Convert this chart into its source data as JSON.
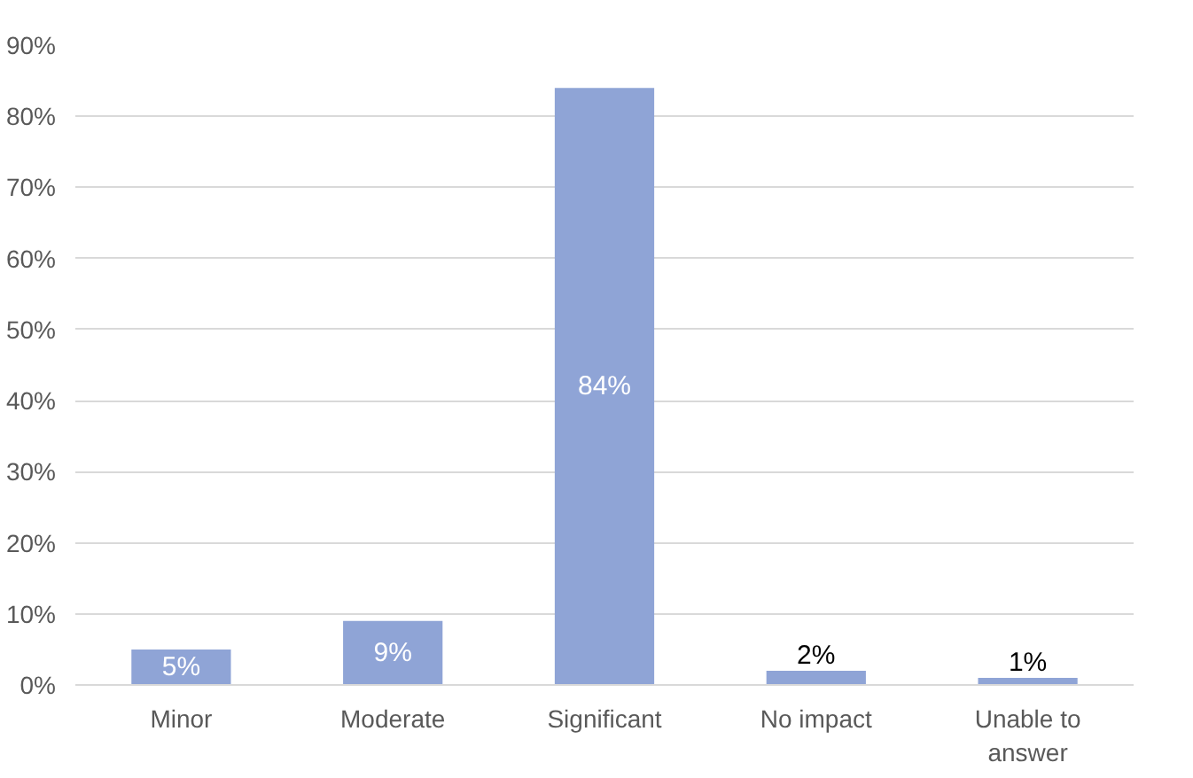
{
  "chart_data": {
    "type": "bar",
    "categories": [
      "Minor",
      "Moderate",
      "Significant",
      "No impact",
      "Unable to answer"
    ],
    "values": [
      5,
      9,
      84,
      2,
      1
    ],
    "value_labels": [
      "5%",
      "9%",
      "84%",
      "2%",
      "1%"
    ],
    "color": "#8fa4d6",
    "ylim": [
      0,
      90
    ],
    "yticks": [
      {
        "value": 0,
        "label": "0%"
      },
      {
        "value": 10,
        "label": "10%"
      },
      {
        "value": 20,
        "label": "20%"
      },
      {
        "value": 30,
        "label": "30%"
      },
      {
        "value": 40,
        "label": "40%"
      },
      {
        "value": 50,
        "label": "50%"
      },
      {
        "value": 60,
        "label": "60%"
      },
      {
        "value": 70,
        "label": "70%"
      },
      {
        "value": 80,
        "label": "80%"
      },
      {
        "value": 90,
        "label": "90%"
      }
    ],
    "grid": "y"
  }
}
